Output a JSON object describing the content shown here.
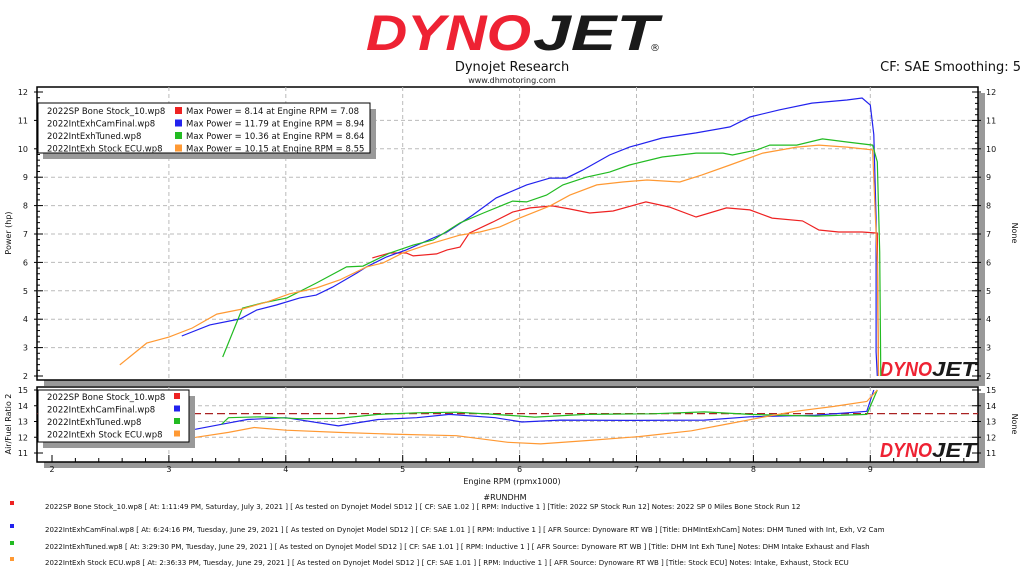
{
  "header": {
    "logo_red": "DYNO",
    "logo_black": "JET",
    "logo_reg": "®",
    "company": "Dynojet Research",
    "website": "www.dhmotoring.com",
    "cf_info": "CF: SAE Smoothing: 5"
  },
  "watermark": {
    "red": "DYNO",
    "black": "JET"
  },
  "run_label": "#RUNDHM",
  "colors": {
    "red": "#ee2222",
    "blue": "#2222ee",
    "green": "#22bb22",
    "orange": "#ff9933",
    "target": "#aa2222"
  },
  "chart_data": [
    {
      "type": "line",
      "title": "Power",
      "ylabel": "Power (hp)",
      "ylabel_right": "None",
      "xlim": [
        1.88,
        9.91
      ],
      "ylim": [
        2,
        12
      ],
      "y_ticks": [
        "2",
        "3",
        "4",
        "5",
        "6",
        "7",
        "8",
        "9",
        "10",
        "11",
        "12"
      ],
      "grid": true,
      "legend_position": "top-left",
      "series": [
        {
          "name": "2022SP Bone Stock_10.wp8",
          "color": "#ee2222",
          "legend": "Max Power = 8.14 at Engine RPM = 7.08",
          "x": [
            4.74,
            4.89,
            5.03,
            5.09,
            5.29,
            5.38,
            5.49,
            5.57,
            5.77,
            5.94,
            6.09,
            6.28,
            6.43,
            6.6,
            6.8,
            7.08,
            7.28,
            7.51,
            7.77,
            7.97,
            8.16,
            8.42,
            8.56,
            8.73,
            8.93,
            9.06,
            9.07
          ],
          "y": [
            6.16,
            6.33,
            6.33,
            6.23,
            6.3,
            6.44,
            6.54,
            7.03,
            7.42,
            7.77,
            7.92,
            7.99,
            7.88,
            7.74,
            7.81,
            8.13,
            7.95,
            7.6,
            7.92,
            7.85,
            7.56,
            7.46,
            7.14,
            7.07,
            7.07,
            7.03,
            2.0
          ]
        },
        {
          "name": "2022IntExhCamFinal.wp8",
          "color": "#2222ee",
          "legend": "Max Power = 11.79 at Engine RPM = 8.94",
          "x": [
            3.11,
            3.35,
            3.61,
            3.75,
            3.92,
            4.12,
            4.26,
            4.4,
            4.61,
            4.69,
            4.86,
            5.03,
            5.26,
            5.38,
            5.6,
            5.8,
            6.06,
            6.26,
            6.4,
            6.54,
            6.77,
            6.94,
            7.22,
            7.51,
            7.8,
            7.97,
            8.22,
            8.5,
            8.8,
            8.93,
            9.0,
            9.03,
            9.05,
            9.05,
            9.06
          ],
          "y": [
            3.41,
            3.8,
            4.01,
            4.32,
            4.5,
            4.75,
            4.85,
            5.13,
            5.63,
            5.84,
            6.19,
            6.44,
            6.86,
            7.07,
            7.67,
            8.27,
            8.73,
            8.97,
            8.97,
            9.25,
            9.78,
            10.06,
            10.38,
            10.56,
            10.77,
            11.12,
            11.37,
            11.61,
            11.72,
            11.79,
            11.54,
            10.5,
            7.56,
            2.85,
            2.0
          ]
        },
        {
          "name": "2022IntExhTuned.wp8",
          "color": "#22bb22",
          "legend": "Max Power = 10.36 at Engine RPM = 8.64",
          "x": [
            3.46,
            3.63,
            3.8,
            4.01,
            4.26,
            4.52,
            4.66,
            4.89,
            5.09,
            5.26,
            5.49,
            5.69,
            5.94,
            6.06,
            6.23,
            6.37,
            6.57,
            6.77,
            6.94,
            7.22,
            7.51,
            7.74,
            7.82,
            8.03,
            8.14,
            8.37,
            8.59,
            8.8,
            9.02,
            9.06,
            9.08,
            9.09
          ],
          "y": [
            2.67,
            4.39,
            4.57,
            4.75,
            5.27,
            5.84,
            5.87,
            6.33,
            6.61,
            6.79,
            7.39,
            7.74,
            8.16,
            8.13,
            8.37,
            8.73,
            9.0,
            9.18,
            9.43,
            9.71,
            9.85,
            9.85,
            9.78,
            9.96,
            10.13,
            10.13,
            10.35,
            10.24,
            10.13,
            9.54,
            6.37,
            2.0
          ]
        },
        {
          "name": "2022IntExh Stock ECU.wp8",
          "color": "#ff9933",
          "legend": "Max Power = 10.15 at Engine RPM = 8.55",
          "x": [
            2.58,
            2.81,
            3.0,
            3.2,
            3.41,
            3.63,
            3.84,
            4.03,
            4.26,
            4.46,
            4.69,
            4.83,
            5.0,
            5.2,
            5.49,
            5.66,
            5.83,
            6.0,
            6.26,
            6.43,
            6.66,
            6.88,
            7.09,
            7.37,
            7.56,
            7.8,
            8.08,
            8.37,
            8.56,
            8.8,
            9.02,
            9.06,
            9.07
          ],
          "y": [
            2.39,
            3.16,
            3.37,
            3.69,
            4.18,
            4.36,
            4.61,
            4.89,
            5.1,
            5.38,
            5.84,
            5.98,
            6.33,
            6.61,
            6.96,
            7.07,
            7.25,
            7.56,
            7.99,
            8.37,
            8.73,
            8.83,
            8.9,
            8.83,
            9.08,
            9.43,
            9.85,
            10.06,
            10.13,
            10.06,
            9.96,
            6.0,
            2.0
          ]
        }
      ]
    },
    {
      "type": "line",
      "title": "Air/Fuel Ratio",
      "xlabel": "Engine RPM (rpmx1000)",
      "ylabel": "Air/Fuel Ratio 2",
      "ylabel_right": "None",
      "xlim": [
        1.88,
        9.91
      ],
      "ylim": [
        11,
        15
      ],
      "x_ticks": [
        "2",
        "3",
        "4",
        "5",
        "6",
        "7",
        "8",
        "9"
      ],
      "y_ticks": [
        "11",
        "12",
        "13",
        "14",
        "15"
      ],
      "target_afr": 13.5,
      "grid": true,
      "legend_position": "top-left",
      "series": [
        {
          "name": "2022SP Bone Stock_10.wp8",
          "color": "#ee2222",
          "x": [],
          "y": []
        },
        {
          "name": "2022IntExhCamFinal.wp8",
          "color": "#2222ee",
          "x": [
            2.9,
            3.23,
            3.45,
            3.67,
            4.0,
            4.45,
            4.79,
            5.12,
            5.4,
            5.79,
            6.02,
            6.35,
            6.91,
            7.58,
            7.97,
            8.53,
            8.97,
            9.03
          ],
          "y": [
            12.45,
            12.51,
            12.82,
            13.13,
            13.24,
            12.72,
            13.13,
            13.24,
            13.45,
            13.24,
            12.97,
            13.09,
            13.07,
            13.09,
            13.3,
            13.4,
            13.65,
            15.0
          ]
        },
        {
          "name": "2022IntExhTuned.wp8",
          "color": "#22bb22",
          "x": [
            3.45,
            3.51,
            3.78,
            4.12,
            4.45,
            4.79,
            5.12,
            5.46,
            5.79,
            6.13,
            6.57,
            7.13,
            7.58,
            7.97,
            8.53,
            8.97,
            9.06
          ],
          "y": [
            12.82,
            13.24,
            13.3,
            13.18,
            13.2,
            13.45,
            13.55,
            13.59,
            13.45,
            13.28,
            13.45,
            13.49,
            13.61,
            13.45,
            13.34,
            13.45,
            15.0
          ]
        },
        {
          "name": "2022IntExh Stock ECU.wp8",
          "color": "#ff9933",
          "x": [
            2.53,
            2.86,
            3.0,
            3.23,
            3.51,
            3.73,
            4.0,
            4.45,
            4.9,
            5.46,
            5.9,
            6.18,
            6.57,
            7.02,
            7.47,
            7.8,
            8.13,
            8.36,
            8.69,
            8.97,
            9.06
          ],
          "y": [
            11.37,
            11.68,
            11.79,
            12.0,
            12.31,
            12.62,
            12.45,
            12.31,
            12.2,
            12.1,
            11.68,
            11.58,
            11.79,
            12.04,
            12.41,
            12.87,
            13.34,
            13.65,
            13.96,
            14.27,
            15.0
          ]
        }
      ]
    }
  ],
  "runs": [
    {
      "text": "2022SP Bone Stock_10.wp8 [ At: 1:11:49 PM, Saturday, July 3, 2021 ] [ As tested on Dynojet Model SD12 ] [ CF: SAE 1.02 ] [ RPM: Inductive 1 ] [Title: 2022 SP Stock Run 12]  Notes: 2022 SP 0 Miles Bone Stock Run 12",
      "color": "#ee2222"
    },
    {
      "text": "2022IntExhCamFinal.wp8 [ At: 6:24:16 PM, Tuesday, June 29, 2021 ] [ As tested on Dynojet Model SD12 ] [ CF: SAE 1.01 ] [ RPM: Inductive 1 ] [ AFR Source: Dynoware RT WB ] [Title: DHMIntExhCam]  Notes: DHM Tuned with Int, Exh, V2 Cam",
      "color": "#2222ee"
    },
    {
      "text": "2022IntExhTuned.wp8 [ At: 3:29:30 PM, Tuesday, June 29, 2021 ] [ As tested on Dynojet Model SD12 ] [ CF: SAE 1.01 ] [ RPM: Inductive 1 ] [ AFR Source: Dynoware RT WB ] [Title: DHM Int Exh Tune]  Notes: DHM Intake Exhaust and Flash",
      "color": "#22bb22"
    },
    {
      "text": "2022IntExh Stock ECU.wp8 [ At: 2:36:33 PM, Tuesday, June 29, 2021 ] [ As tested on Dynojet Model SD12 ] [ CF: SAE 1.01 ] [ RPM: Inductive 1 ] [ AFR Source: Dynoware RT WB ] [Title: Stock ECU]  Notes: Intake, Exhaust, Stock ECU",
      "color": "#ff9933"
    }
  ]
}
